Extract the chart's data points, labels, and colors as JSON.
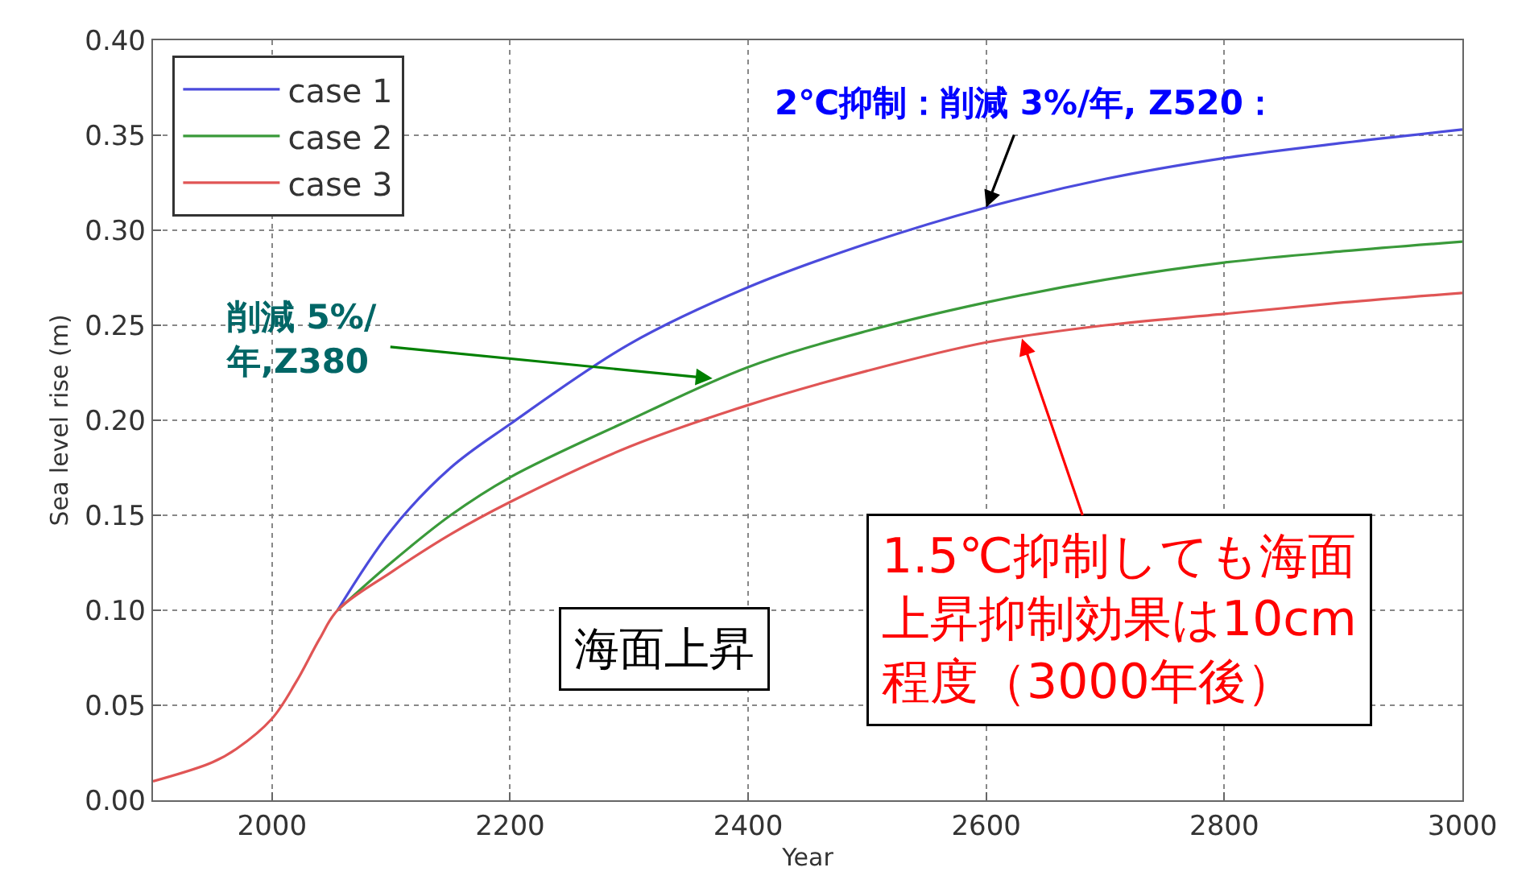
{
  "chart_data": {
    "type": "line",
    "xlabel": "Year",
    "ylabel": "Sea level rise (m)",
    "x": [
      1900,
      1950,
      1970,
      2000,
      2020,
      2040,
      2055,
      2100,
      2150,
      2200,
      2300,
      2400,
      2500,
      2600,
      2700,
      2800,
      2900,
      3000
    ],
    "series": [
      {
        "name": "case 1",
        "color": "#4b4bdc",
        "values": [
          null,
          null,
          null,
          null,
          null,
          null,
          0.1,
          0.142,
          0.175,
          0.198,
          0.24,
          0.27,
          0.293,
          0.312,
          0.327,
          0.338,
          0.346,
          0.353
        ]
      },
      {
        "name": "case 2",
        "color": "#3a9a3a",
        "values": [
          null,
          null,
          null,
          null,
          null,
          null,
          0.1,
          0.125,
          0.15,
          0.17,
          0.2,
          0.228,
          0.247,
          0.262,
          0.274,
          0.283,
          0.289,
          0.294
        ]
      },
      {
        "name": "case 3",
        "color": "#e05555",
        "values": [
          0.01,
          0.02,
          0.027,
          0.043,
          0.062,
          0.085,
          0.1,
          0.12,
          0.14,
          0.157,
          0.186,
          0.208,
          0.226,
          0.241,
          0.25,
          0.256,
          0.262,
          0.267
        ]
      }
    ],
    "xlim": [
      1900,
      3000
    ],
    "xticks": [
      2000,
      2200,
      2400,
      2600,
      2800,
      3000
    ],
    "ylim": [
      0,
      0.4
    ],
    "yticks": [
      {
        "value": 0,
        "label": "0.00"
      },
      {
        "value": 0.05,
        "label": "0.05"
      },
      {
        "value": 0.1,
        "label": "0.10"
      },
      {
        "value": 0.15,
        "label": "0.15"
      },
      {
        "value": 0.2,
        "label": "0.20"
      },
      {
        "value": 0.25,
        "label": "0.25"
      },
      {
        "value": 0.3,
        "label": "0.30"
      },
      {
        "value": 0.35,
        "label": "0.35"
      },
      {
        "value": 0.4,
        "label": "0.40"
      }
    ],
    "grid": true,
    "legend": "top left",
    "line_style": "solid",
    "marker": "none",
    "annotations": [
      {
        "text": "2℃抑制：削減 3%/年, Z520：",
        "x": 2600,
        "y": 0.312
      },
      {
        "text": "削減 5%/年,Z380",
        "x": 2370,
        "y": 0.222
      },
      {
        "text": "1.5℃抑制しても海面上昇抑制効果は10cm程度（3000年後）",
        "x": 2630,
        "y": 0.243
      },
      "海面上昇"
    ]
  }
}
